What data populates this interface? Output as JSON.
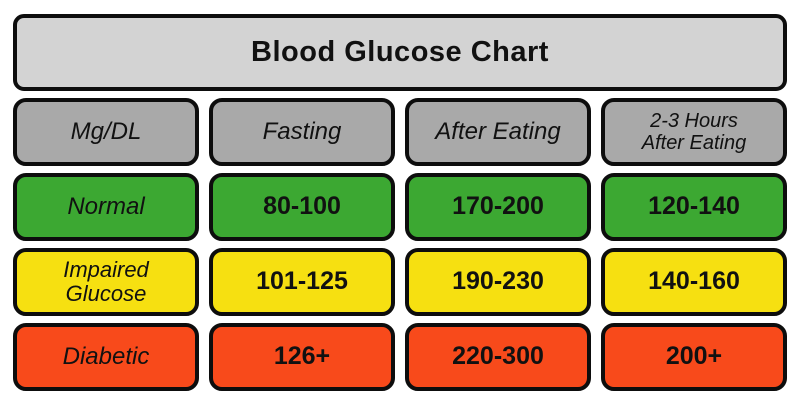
{
  "chart_data": {
    "type": "table",
    "title": "Blood Glucose Chart",
    "unit_note": "Mg/DL",
    "columns": [
      "Mg/DL",
      "Fasting",
      "After Eating",
      "2-3 Hours\nAfter Eating"
    ],
    "rows": [
      {
        "label": "Normal",
        "values": [
          "80-100",
          "170-200",
          "120-140"
        ],
        "color": "#3ca832"
      },
      {
        "label": "Impaired\nGlucose",
        "values": [
          "101-125",
          "190-230",
          "140-160"
        ],
        "color": "#f6e011"
      },
      {
        "label": "Diabetic",
        "values": [
          "126+",
          "220-300",
          "200+"
        ],
        "color": "#f84a1b"
      }
    ],
    "layout_hints": {
      "legend": "none",
      "grid": "rounded-cell matrix, 4 columns x 4 rows plus title bar"
    },
    "colors": {
      "title_bg": "#d3d3d3",
      "header_bg": "#a9a9a9",
      "border": "#0d0d0d",
      "text": "#111111",
      "normal_bg": "#3ca832",
      "impaired_bg": "#f6e011",
      "diabetic_bg": "#f84a1b",
      "page_bg": "#ffffff"
    }
  }
}
